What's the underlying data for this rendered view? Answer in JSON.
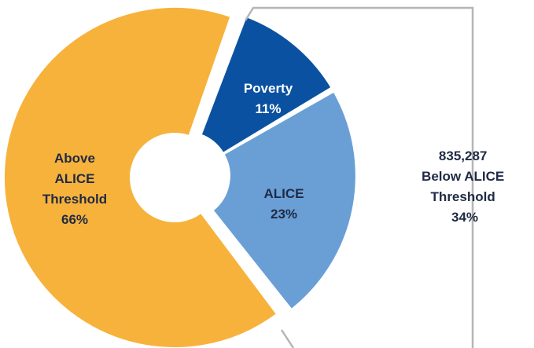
{
  "chart_data": {
    "type": "pie",
    "donut": true,
    "slices": [
      {
        "name": "Above ALICE Threshold",
        "label_lines": [
          "Above",
          "ALICE",
          "Threshold"
        ],
        "percent_label": "66%",
        "value": 66,
        "color": "#f7b23b",
        "label_color": "#1f2a44",
        "exploded": false
      },
      {
        "name": "Poverty",
        "label_lines": [
          "Poverty"
        ],
        "percent_label": "11%",
        "value": 11,
        "color": "#0a52a1",
        "label_color": "#ffffff",
        "exploded": true
      },
      {
        "name": "ALICE",
        "label_lines": [
          "ALICE"
        ],
        "percent_label": "23%",
        "value": 23,
        "color": "#6a9fd6",
        "label_color": "#1f2a44",
        "exploded": true
      }
    ],
    "callout": {
      "lines": [
        "835,287",
        "Below ALICE",
        "Threshold",
        "34%"
      ],
      "line_color": "#b5b5b5"
    }
  }
}
